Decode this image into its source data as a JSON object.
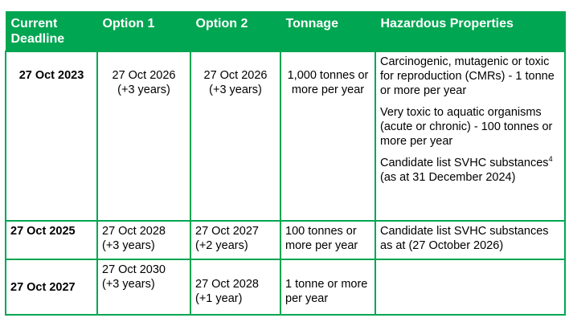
{
  "table": {
    "headers": [
      "Current Deadline",
      "Option 1",
      "Option 2",
      "Tonnage",
      "Hazardous Properties"
    ],
    "rows": [
      {
        "deadline": "27 Oct 2023",
        "option1": "27 Oct 2026 (+3 years)",
        "option2": "27 Oct 2026 (+3 years)",
        "tonnage": "1,000 tonnes or more per year",
        "hazards": [
          "Carcinogenic, mutagenic or toxic for reproduction (CMRs) - 1 tonne or more per year",
          "Very toxic to aquatic organisms (acute or chronic) - 100 tonnes or more per year"
        ],
        "hazard_svhc": {
          "before": "Candidate list SVHC substances",
          "footnote": "4",
          "after": " (as at 31 December 2024)"
        }
      },
      {
        "deadline": "27 Oct 2025",
        "option1": "27 Oct 2028 (+3 years)",
        "option2": "27 Oct 2027 (+2 years)",
        "tonnage": "100 tonnes or more per year",
        "hazards": [
          "Candidate list SVHC substances as at (27 October 2026)"
        ]
      },
      {
        "deadline": "27 Oct 2027",
        "option1": "27 Oct 2030 (+3 years)",
        "option2": "27 Oct 2028 (+1 year)",
        "tonnage": "1 tonne or more per year",
        "hazards": []
      }
    ]
  }
}
